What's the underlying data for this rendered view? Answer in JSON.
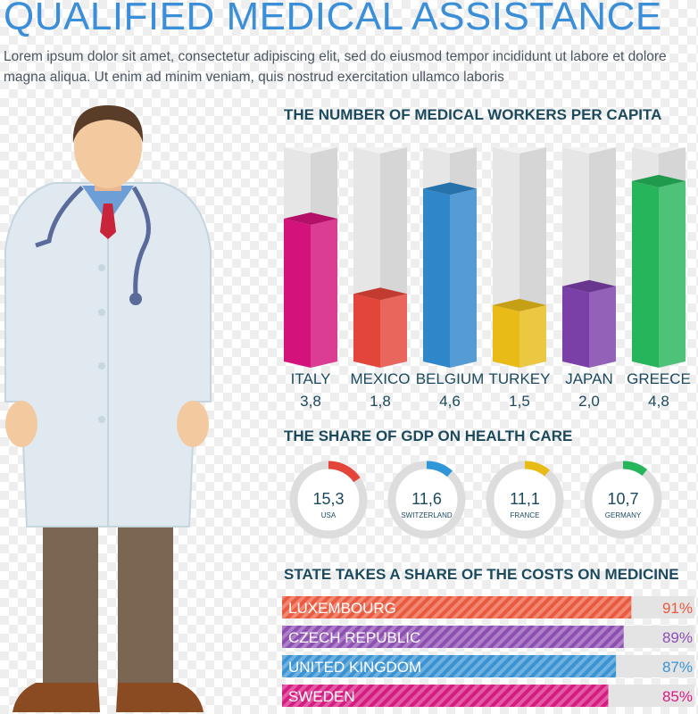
{
  "header": {
    "title": "QUALIFIED MEDICAL ASSISTANCE",
    "intro": "Lorem ipsum dolor sit amet, consectetur adipiscing elit, sed do eiusmod tempor incididunt ut labore et dolore magna aliqua. Ut enim ad minim veniam, quis nostrud exercitation ullamco laboris"
  },
  "chart_data": [
    {
      "type": "bar",
      "title": "THE NUMBER OF MEDICAL WORKERS PER CAPITA",
      "categories": [
        "ITALY",
        "MEXICO",
        "BELGIUM",
        "TURKEY",
        "JAPAN",
        "GREECE"
      ],
      "values": [
        3.8,
        1.8,
        4.6,
        1.5,
        2.0,
        4.8
      ],
      "value_labels": [
        "3,8",
        "1,8",
        "4,6",
        "1,5",
        "2,0",
        "4,8"
      ],
      "colors": [
        "#d4127c",
        "#e4453a",
        "#2f86c9",
        "#e8bb17",
        "#7b3fa8",
        "#26b55a"
      ],
      "ylim": [
        0,
        5.7
      ]
    },
    {
      "type": "pie",
      "title": "THE SHARE OF GDP ON HEALTH CARE",
      "categories": [
        "USA",
        "SWITZERLAND",
        "FRANCE",
        "GERMANY"
      ],
      "values": [
        15.3,
        11.6,
        11.1,
        10.7
      ],
      "value_labels": [
        "15,3",
        "11,6",
        "11,1",
        "10,7"
      ],
      "colors": [
        "#e4453a",
        "#2f96d8",
        "#e8bb17",
        "#26b55a"
      ]
    },
    {
      "type": "bar",
      "orientation": "horizontal",
      "title": "STATE TAKES A SHARE OF THE COSTS ON MEDICINE",
      "categories": [
        "LUXEMBOURG",
        "CZECH REPUBLIC",
        "UNITED KINGDOM",
        "SWEDEN"
      ],
      "values": [
        91,
        89,
        87,
        85
      ],
      "value_labels": [
        "91%",
        "89%",
        "87%",
        "85%"
      ],
      "colors": [
        "#ea5a3f",
        "#8e4fb3",
        "#3a93d3",
        "#d61c81"
      ],
      "xlim": [
        0,
        100
      ]
    }
  ]
}
